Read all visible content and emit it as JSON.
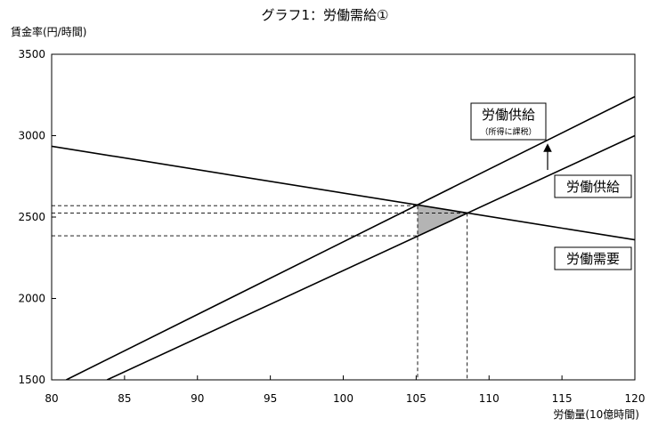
{
  "chart_data": {
    "type": "line",
    "title": "グラフ1：労働需給①",
    "xlabel": "労働量(10億時間)",
    "ylabel": "賃金率(円/時間)",
    "xlim": [
      80,
      120
    ],
    "ylim": [
      1500,
      3500
    ],
    "xticks": [
      "80",
      "85",
      "90",
      "95",
      "100",
      "105",
      "110",
      "115",
      "120"
    ],
    "yticks": [
      "1500",
      "2000",
      "2500",
      "3000",
      "3500"
    ],
    "grid": false,
    "series": [
      {
        "name": "労働需要",
        "x": [
          80,
          120
        ],
        "y": [
          2935,
          2360
        ]
      },
      {
        "name": "労働供給",
        "x": [
          83.8,
          120
        ],
        "y": [
          1500,
          3000
        ]
      },
      {
        "name": "労働供給",
        "sublabel": "（所得に課税）",
        "x": [
          81,
          120
        ],
        "y": [
          1500,
          3240
        ]
      }
    ],
    "equilibrium": {
      "before": {
        "x": 108.5,
        "y": 2525
      },
      "after": {
        "x": 105.1,
        "y": 2570
      },
      "supply_price_at_after": 2385
    },
    "shaded_region": "deadweight loss triangle",
    "shift_arrow": "upward"
  }
}
